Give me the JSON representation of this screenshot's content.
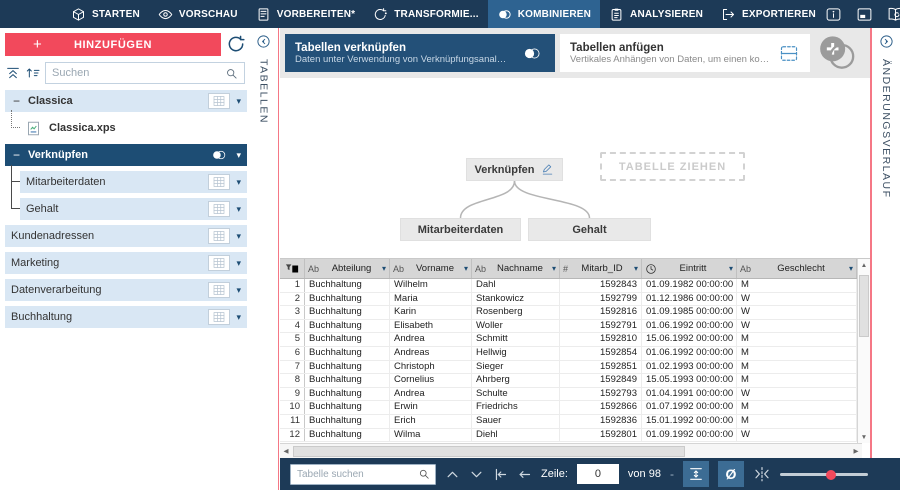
{
  "colors": {
    "navy": "#1d3a57",
    "active_tab": "#2e6391",
    "pink": "#f2495c",
    "selected": "#1d4d74",
    "card_navy": "#235078",
    "row_light": "#d9e7f4"
  },
  "topbar": {
    "tabs": [
      {
        "label": "STARTEN",
        "icon": "cube-icon",
        "active": false
      },
      {
        "label": "VORSCHAU",
        "icon": "eye-icon",
        "active": false
      },
      {
        "label": "VORBEREITEN*",
        "icon": "prepare-icon",
        "active": false
      },
      {
        "label": "TRANSFORMIE...",
        "icon": "transform-icon",
        "active": false
      },
      {
        "label": "KOMBINIEREN",
        "icon": "combine-icon",
        "active": true
      },
      {
        "label": "ANALYSIEREN",
        "icon": "analyze-icon",
        "active": false
      },
      {
        "label": "EXPORTIEREN",
        "icon": "export-icon",
        "active": false
      }
    ],
    "right_icons": [
      "info-icon",
      "window-icon",
      "learning-icon",
      "settings-icon"
    ]
  },
  "sidebar": {
    "add_button_label": "HINZUFÜGEN",
    "plus_glyph": "+",
    "search_placeholder": "Suchen",
    "tree": [
      {
        "label": "Classica",
        "group": true,
        "minus": "−",
        "trailing": "grid",
        "bold": true,
        "style": "light",
        "indent": 0,
        "conn": ""
      },
      {
        "label": "Classica.xps",
        "group": false,
        "minus": "",
        "trailing": "doc",
        "bold": true,
        "style": "white",
        "indent": 1,
        "conn": "dotted"
      },
      {
        "label": "Verknüpfen",
        "group": true,
        "minus": "−",
        "trailing": "venn",
        "bold": true,
        "style": "selected",
        "indent": 0,
        "conn": ""
      },
      {
        "label": "Mitarbeiterdaten",
        "group": false,
        "minus": "",
        "trailing": "grid",
        "bold": false,
        "style": "light",
        "indent": 1,
        "conn": "solid1"
      },
      {
        "label": "Gehalt",
        "group": false,
        "minus": "",
        "trailing": "grid",
        "bold": false,
        "style": "light",
        "indent": 1,
        "conn": "solid2"
      },
      {
        "label": "Kundenadressen",
        "group": false,
        "minus": "",
        "trailing": "grid",
        "bold": false,
        "style": "light",
        "indent": 0,
        "conn": ""
      },
      {
        "label": "Marketing",
        "group": false,
        "minus": "",
        "trailing": "grid",
        "bold": false,
        "style": "light",
        "indent": 0,
        "conn": ""
      },
      {
        "label": "Datenverarbeitung",
        "group": false,
        "minus": "",
        "trailing": "grid",
        "bold": false,
        "style": "light",
        "indent": 0,
        "conn": ""
      },
      {
        "label": "Buchhaltung",
        "group": false,
        "minus": "",
        "trailing": "grid",
        "bold": false,
        "style": "light",
        "indent": 0,
        "conn": ""
      }
    ]
  },
  "panels": {
    "left_label": "TABELLEN",
    "right_label": "ÄNDERUNGSVERLAUF"
  },
  "combine": {
    "join_card": {
      "title": "Tabellen verknüpfen",
      "subtitle": "Daten unter Verwendung von Verknüpfungsanalyse..."
    },
    "append_card": {
      "title": "Tabellen anfügen",
      "subtitle": "Vertikales Anhängen von Daten, um einen kombinie..."
    },
    "diagram": {
      "join_node": "Verknüpfen",
      "drop_zone": "TABELLE ZIEHEN",
      "sources": [
        "Mitarbeiterdaten",
        "Gehalt"
      ]
    }
  },
  "table": {
    "columns": [
      {
        "prefix": "",
        "name": "",
        "type": "rowno"
      },
      {
        "prefix": "Ab",
        "name": "Abteilung",
        "type": "text"
      },
      {
        "prefix": "Ab",
        "name": "Vorname",
        "type": "text"
      },
      {
        "prefix": "Ab",
        "name": "Nachname",
        "type": "text"
      },
      {
        "prefix": "#",
        "name": "Mitarb_ID",
        "type": "number"
      },
      {
        "prefix": "",
        "name": "Eintritt",
        "type": "datetime"
      },
      {
        "prefix": "Ab",
        "name": "Geschlecht",
        "type": "text"
      }
    ],
    "rows": [
      [
        "1",
        "Buchhaltung",
        "Wilhelm",
        "Dahl",
        "1592843",
        "01.09.1982 00:00:00",
        "M"
      ],
      [
        "2",
        "Buchhaltung",
        "Maria",
        "Stankowicz",
        "1592799",
        "01.12.1986 00:00:00",
        "W"
      ],
      [
        "3",
        "Buchhaltung",
        "Karin",
        "Rosenberg",
        "1592816",
        "01.09.1985 00:00:00",
        "W"
      ],
      [
        "4",
        "Buchhaltung",
        "Elisabeth",
        "Woller",
        "1592791",
        "01.06.1992 00:00:00",
        "W"
      ],
      [
        "5",
        "Buchhaltung",
        "Andrea",
        "Schmitt",
        "1592810",
        "15.06.1992 00:00:00",
        "M"
      ],
      [
        "6",
        "Buchhaltung",
        "Andreas",
        "Hellwig",
        "1592854",
        "01.06.1992 00:00:00",
        "M"
      ],
      [
        "7",
        "Buchhaltung",
        "Christoph",
        "Sieger",
        "1592851",
        "01.02.1993 00:00:00",
        "M"
      ],
      [
        "8",
        "Buchhaltung",
        "Cornelius",
        "Ahrberg",
        "1592849",
        "15.05.1993 00:00:00",
        "M"
      ],
      [
        "9",
        "Buchhaltung",
        "Andrea",
        "Schulte",
        "1592793",
        "01.04.1991 00:00:00",
        "W"
      ],
      [
        "10",
        "Buchhaltung",
        "Erwin",
        "Friedrichs",
        "1592866",
        "01.07.1992 00:00:00",
        "M"
      ],
      [
        "11",
        "Buchhaltung",
        "Erich",
        "Sauer",
        "1592836",
        "15.01.1992 00:00:00",
        "M"
      ],
      [
        "12",
        "Buchhaltung",
        "Wilma",
        "Diehl",
        "1592801",
        "01.09.1992 00:00:00",
        "W"
      ]
    ]
  },
  "statusbar": {
    "search_placeholder": "Tabelle suchen",
    "row_label": "Zeile:",
    "row_value": "0",
    "row_total": "von 98",
    "zoom_minus": "-"
  }
}
